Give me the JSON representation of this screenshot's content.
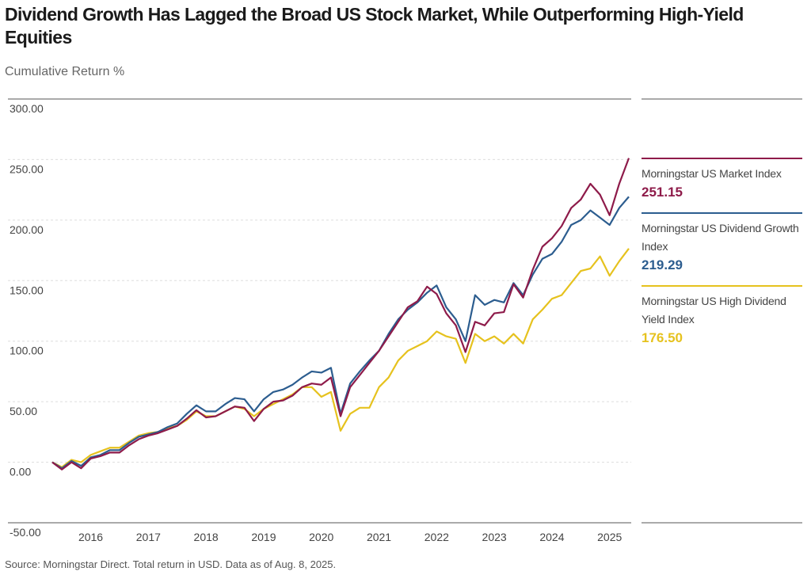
{
  "chart_data": {
    "type": "line",
    "title": "Dividend Growth Has Lagged the Broad US Stock Market, While Outperforming High-Yield Equities",
    "subtitle": "Cumulative Return %",
    "source": "Source: Morningstar Direct. Total return in USD. Data as of Aug. 8, 2025.",
    "ylim": [
      -50,
      300
    ],
    "yticks": [
      {
        "value": -50,
        "label": "-50.00"
      },
      {
        "value": 0,
        "label": "0.00"
      },
      {
        "value": 50,
        "label": "50.00"
      },
      {
        "value": 100,
        "label": "100.00"
      },
      {
        "value": 150,
        "label": "150.00"
      },
      {
        "value": 200,
        "label": "200.00"
      },
      {
        "value": 250,
        "label": "250.00"
      },
      {
        "value": 300,
        "label": "300.00"
      }
    ],
    "grid": true,
    "categories": [
      null,
      null,
      null,
      null,
      "2016",
      null,
      null,
      null,
      null,
      null,
      "2017",
      null,
      null,
      null,
      null,
      null,
      "2018",
      null,
      null,
      null,
      null,
      null,
      "2019",
      null,
      null,
      null,
      null,
      null,
      "2020",
      null,
      null,
      null,
      null,
      null,
      "2021",
      null,
      null,
      null,
      null,
      null,
      "2022",
      null,
      null,
      null,
      null,
      null,
      "2023",
      null,
      null,
      null,
      null,
      null,
      "2024",
      null,
      null,
      null,
      null,
      null,
      "2025",
      null,
      null
    ],
    "series": [
      {
        "name": "Morningstar US Market Index",
        "color": "#8e1b4a",
        "values": [
          0,
          -6,
          0,
          -5,
          3,
          5,
          8,
          8,
          14,
          19,
          22,
          24,
          27,
          30,
          36,
          43,
          37,
          38,
          42,
          46,
          45,
          34,
          44,
          50,
          51,
          55,
          62,
          65,
          64,
          70,
          38,
          62,
          72,
          82,
          92,
          104,
          116,
          128,
          133,
          145,
          139,
          123,
          113,
          91,
          116,
          113,
          123,
          124,
          147,
          136,
          159,
          178,
          185,
          195,
          210,
          217,
          230,
          221,
          204,
          230,
          251.15
        ],
        "value_labels": [
          null,
          null,
          null,
          null,
          null,
          null,
          null,
          null,
          null,
          null,
          null,
          null,
          null,
          null,
          null,
          null,
          null,
          null,
          null,
          null,
          null,
          null,
          null,
          null,
          null,
          null,
          null,
          null,
          null,
          null,
          null,
          null,
          null,
          null,
          null,
          null,
          null,
          null,
          null,
          null,
          null,
          null,
          null,
          null,
          null,
          null,
          null,
          null,
          null,
          null,
          null,
          null,
          null,
          null,
          null,
          null,
          null,
          null,
          null,
          null,
          "251.15"
        ]
      },
      {
        "name": "Morningstar US Dividend Growth Index",
        "color": "#2c5d8f",
        "values": [
          0,
          -5,
          1,
          -3,
          4,
          6,
          10,
          10,
          16,
          21,
          23,
          25,
          29,
          32,
          40,
          47,
          42,
          42,
          48,
          53,
          52,
          42,
          52,
          58,
          60,
          64,
          70,
          75,
          74,
          78,
          40,
          65,
          75,
          84,
          92,
          106,
          118,
          126,
          132,
          140,
          146,
          128,
          118,
          100,
          138,
          130,
          134,
          132,
          148,
          138,
          155,
          168,
          172,
          182,
          196,
          200,
          208,
          202,
          196,
          210,
          219.29
        ],
        "value_labels": [
          null,
          null,
          null,
          null,
          null,
          null,
          null,
          null,
          null,
          null,
          null,
          null,
          null,
          null,
          null,
          null,
          null,
          null,
          null,
          null,
          null,
          null,
          null,
          null,
          null,
          null,
          null,
          null,
          null,
          null,
          null,
          null,
          null,
          null,
          null,
          null,
          null,
          null,
          null,
          null,
          null,
          null,
          null,
          null,
          null,
          null,
          null,
          null,
          null,
          null,
          null,
          null,
          null,
          null,
          null,
          null,
          null,
          null,
          null,
          null,
          "219.29"
        ]
      },
      {
        "name": "Morningstar US High Dividend Yield Index",
        "color": "#e6c21e",
        "values": [
          0,
          -4,
          2,
          0,
          6,
          9,
          12,
          12,
          17,
          22,
          24,
          25,
          28,
          30,
          35,
          42,
          38,
          38,
          42,
          46,
          44,
          38,
          44,
          48,
          52,
          56,
          62,
          62,
          54,
          58,
          26,
          40,
          45,
          45,
          62,
          70,
          84,
          92,
          96,
          100,
          108,
          104,
          102,
          82,
          106,
          100,
          104,
          98,
          106,
          98,
          118,
          126,
          135,
          138,
          148,
          158,
          160,
          170,
          154,
          166,
          176.5
        ],
        "value_labels": [
          null,
          null,
          null,
          null,
          null,
          null,
          null,
          null,
          null,
          null,
          null,
          null,
          null,
          null,
          null,
          null,
          null,
          null,
          null,
          null,
          null,
          null,
          null,
          null,
          null,
          null,
          null,
          null,
          null,
          null,
          null,
          null,
          null,
          null,
          null,
          null,
          null,
          null,
          null,
          null,
          null,
          null,
          null,
          null,
          null,
          null,
          null,
          null,
          null,
          null,
          null,
          null,
          null,
          null,
          null,
          null,
          null,
          null,
          null,
          null,
          "176.50"
        ]
      }
    ]
  }
}
